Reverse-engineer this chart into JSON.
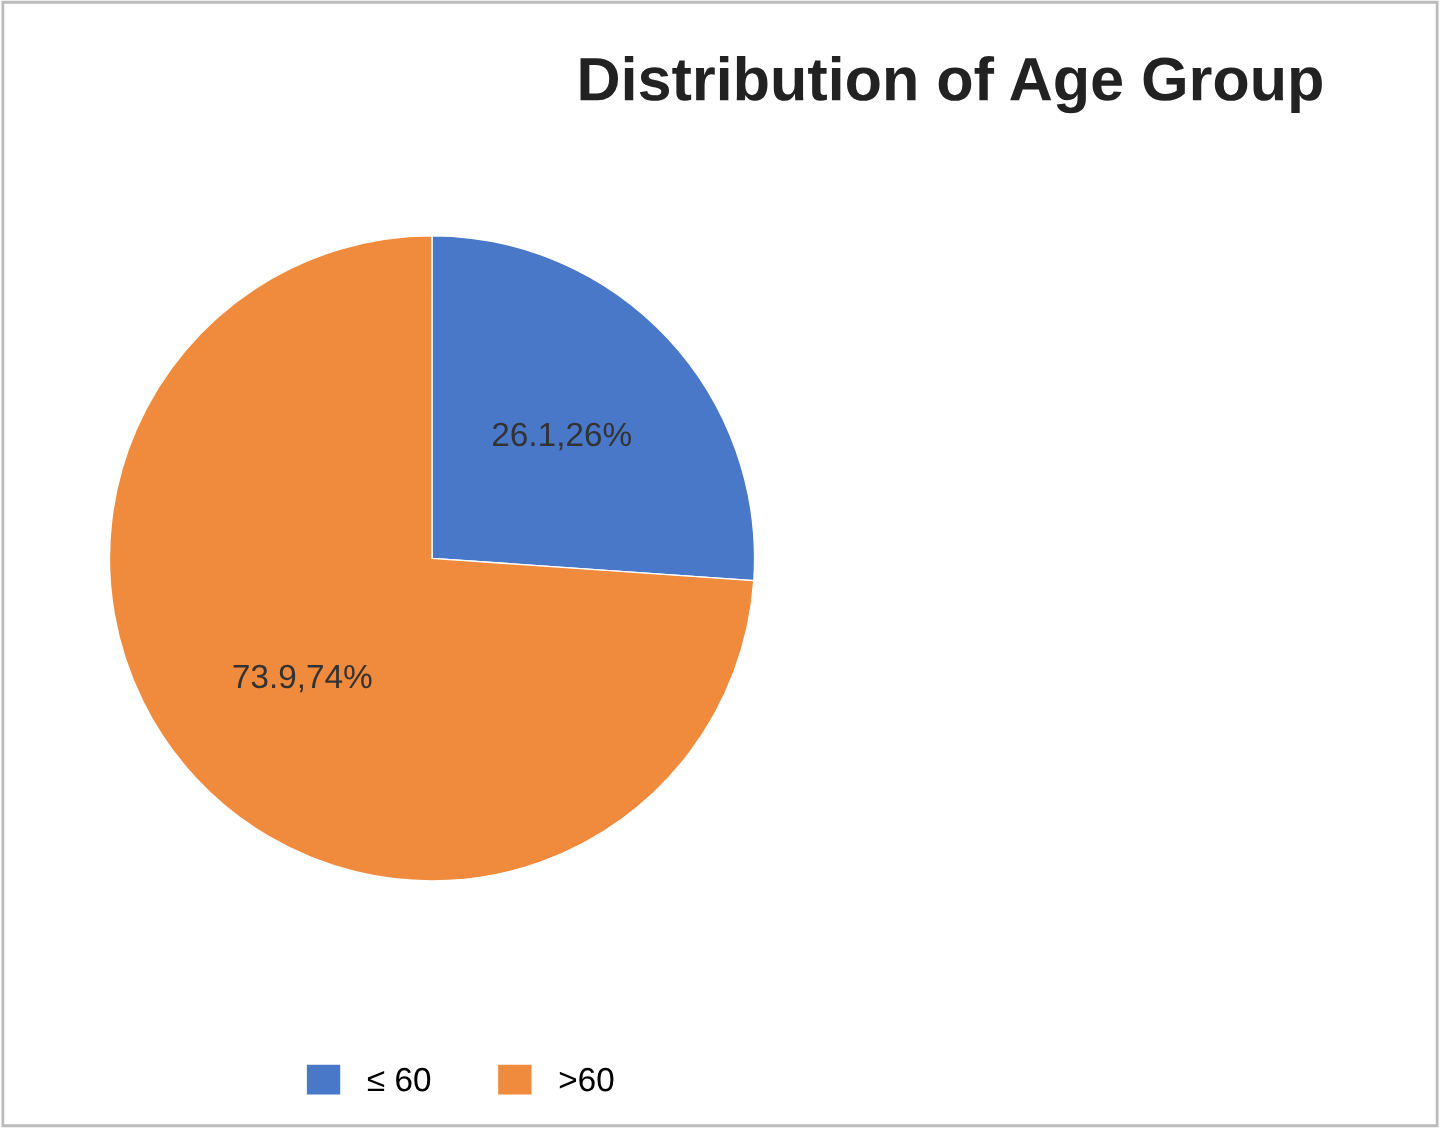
{
  "chart_data": {
    "type": "pie",
    "title": "Distribution of Age Group",
    "categories": [
      "≤ 60",
      ">60"
    ],
    "values": [
      26.1,
      73.9
    ],
    "colors": [
      "#4a78c8",
      "#f08a3c"
    ],
    "value_labels": [
      "26.1,26%",
      "73.9,74%"
    ],
    "legend": "bottom"
  }
}
